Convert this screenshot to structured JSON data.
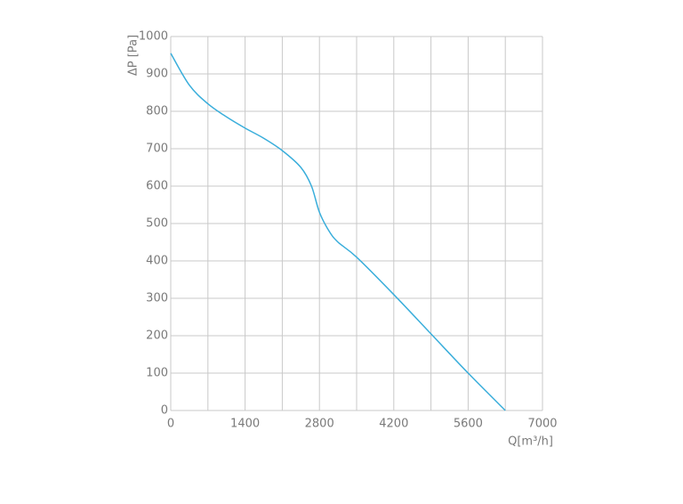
{
  "chart_data": {
    "type": "line",
    "x_label": "Q[m³/h]",
    "y_label": "ΔP [Pa]",
    "x": [
      0,
      350,
      700,
      1050,
      1400,
      1750,
      2100,
      2450,
      2650,
      2800,
      2980,
      3150,
      3500,
      4200,
      4900,
      5600,
      6300
    ],
    "series": [
      {
        "color": "#3aaedb",
        "values": [
          955,
          870,
          820,
          785,
          755,
          728,
          695,
          650,
          600,
          530,
          480,
          450,
          410,
          310,
          205,
          100,
          0
        ]
      }
    ],
    "xlim": [
      0,
      7000
    ],
    "ylim": [
      0,
      1000
    ],
    "xticks": [
      0,
      1400,
      2800,
      4200,
      5600,
      7000
    ],
    "xgrid": [
      0,
      700,
      1400,
      2100,
      2800,
      3500,
      4200,
      4900,
      5600,
      6300,
      7000
    ],
    "yticks": [
      0,
      100,
      200,
      300,
      400,
      500,
      600,
      700,
      800,
      900,
      1000
    ],
    "grid": true
  }
}
